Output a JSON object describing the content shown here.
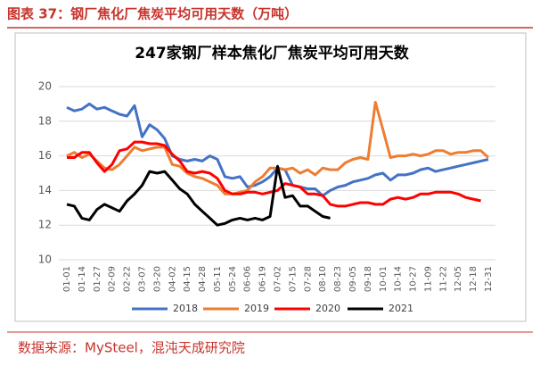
{
  "header": {
    "title": "图表 37：钢厂焦化厂焦炭平均可用天数（万吨）"
  },
  "footer": {
    "source": "数据来源：MySteel，混沌天成研究院"
  },
  "chart_data": {
    "type": "line",
    "title": "247家钢厂样本焦化厂焦炭平均可用天数",
    "categories": [
      "01-01",
      null,
      "01-14",
      null,
      "01-27",
      null,
      "02-09",
      null,
      "02-22",
      null,
      "03-07",
      null,
      "03-20",
      null,
      "04-02",
      null,
      "04-15",
      null,
      "04-28",
      null,
      "05-11",
      null,
      "05-24",
      null,
      "06-06",
      null,
      "06-19",
      null,
      "07-02",
      null,
      "07-15",
      null,
      "07-28",
      null,
      "08-10",
      null,
      "08-23",
      null,
      "09-05",
      null,
      "09-18",
      null,
      "10-01",
      null,
      "10-14",
      null,
      "10-27",
      null,
      "11-09",
      null,
      "11-22",
      null,
      "12-05",
      null,
      "12-18",
      null,
      "12-31"
    ],
    "series": [
      {
        "name": "2018",
        "color": "#4472c4",
        "values": [
          18.8,
          18.6,
          18.7,
          19.0,
          18.7,
          18.8,
          18.6,
          18.4,
          18.3,
          18.9,
          17.1,
          17.8,
          17.5,
          17.0,
          16.0,
          15.8,
          15.7,
          15.8,
          15.7,
          16.0,
          15.8,
          14.8,
          14.7,
          14.8,
          14.2,
          14.3,
          14.5,
          14.8,
          15.3,
          15.2,
          14.3,
          14.2,
          14.1,
          14.1,
          13.7,
          14.0,
          14.2,
          14.3,
          14.5,
          14.6,
          14.7,
          14.9,
          15.0,
          14.6,
          14.9,
          14.9,
          15.0,
          15.2,
          15.3,
          15.1,
          15.2,
          15.3,
          15.4,
          15.5,
          15.6,
          15.7,
          15.8
        ]
      },
      {
        "name": "2019",
        "color": "#ed7d31",
        "values": [
          16.0,
          16.2,
          15.9,
          16.1,
          15.7,
          15.3,
          15.2,
          15.5,
          16.0,
          16.5,
          16.3,
          16.4,
          16.5,
          16.5,
          15.5,
          15.4,
          15.0,
          14.8,
          14.7,
          14.5,
          14.3,
          13.8,
          13.8,
          13.9,
          14.0,
          14.5,
          14.8,
          15.3,
          15.3,
          15.2,
          15.3,
          15.0,
          15.2,
          14.9,
          15.3,
          15.2,
          15.2,
          15.6,
          15.8,
          15.9,
          15.8,
          19.1,
          17.5,
          15.9,
          16.0,
          16.0,
          16.1,
          16.0,
          16.1,
          16.3,
          16.3,
          16.1,
          16.2,
          16.2,
          16.3,
          16.3,
          15.9
        ]
      },
      {
        "name": "2020",
        "color": "#ff0000",
        "values": [
          15.9,
          15.9,
          16.2,
          16.2,
          15.6,
          15.1,
          15.5,
          16.3,
          16.4,
          16.8,
          16.8,
          16.7,
          16.7,
          16.6,
          16.1,
          15.7,
          15.1,
          15.0,
          15.1,
          15.0,
          14.7,
          14.0,
          13.8,
          13.8,
          13.9,
          13.9,
          13.8,
          13.9,
          14.0,
          14.4,
          14.3,
          14.2,
          13.8,
          13.8,
          13.7,
          13.2,
          13.1,
          13.1,
          13.2,
          13.3,
          13.3,
          13.2,
          13.2,
          13.5,
          13.6,
          13.5,
          13.6,
          13.8,
          13.8,
          13.9,
          13.9,
          13.9,
          13.8,
          13.6,
          13.5,
          13.4,
          null
        ]
      },
      {
        "name": "2021",
        "color": "#000000",
        "values": [
          13.2,
          13.1,
          12.4,
          12.3,
          12.9,
          13.2,
          13.0,
          12.8,
          13.4,
          13.8,
          14.3,
          15.1,
          15.0,
          15.1,
          14.6,
          14.1,
          13.8,
          13.2,
          12.8,
          12.4,
          12.0,
          12.1,
          12.3,
          12.4,
          12.3,
          12.4,
          12.3,
          12.5,
          15.4,
          13.6,
          13.7,
          13.1,
          13.1,
          12.8,
          12.5,
          12.4,
          null,
          null,
          null,
          null,
          null,
          null,
          null,
          null,
          null,
          null,
          null,
          null,
          null,
          null,
          null,
          null,
          null,
          null,
          null,
          null,
          null
        ]
      }
    ],
    "ylim": [
      10,
      20
    ],
    "yticks": [
      10,
      12,
      14,
      16,
      18,
      20
    ],
    "grid": true,
    "legend": "bottom"
  }
}
